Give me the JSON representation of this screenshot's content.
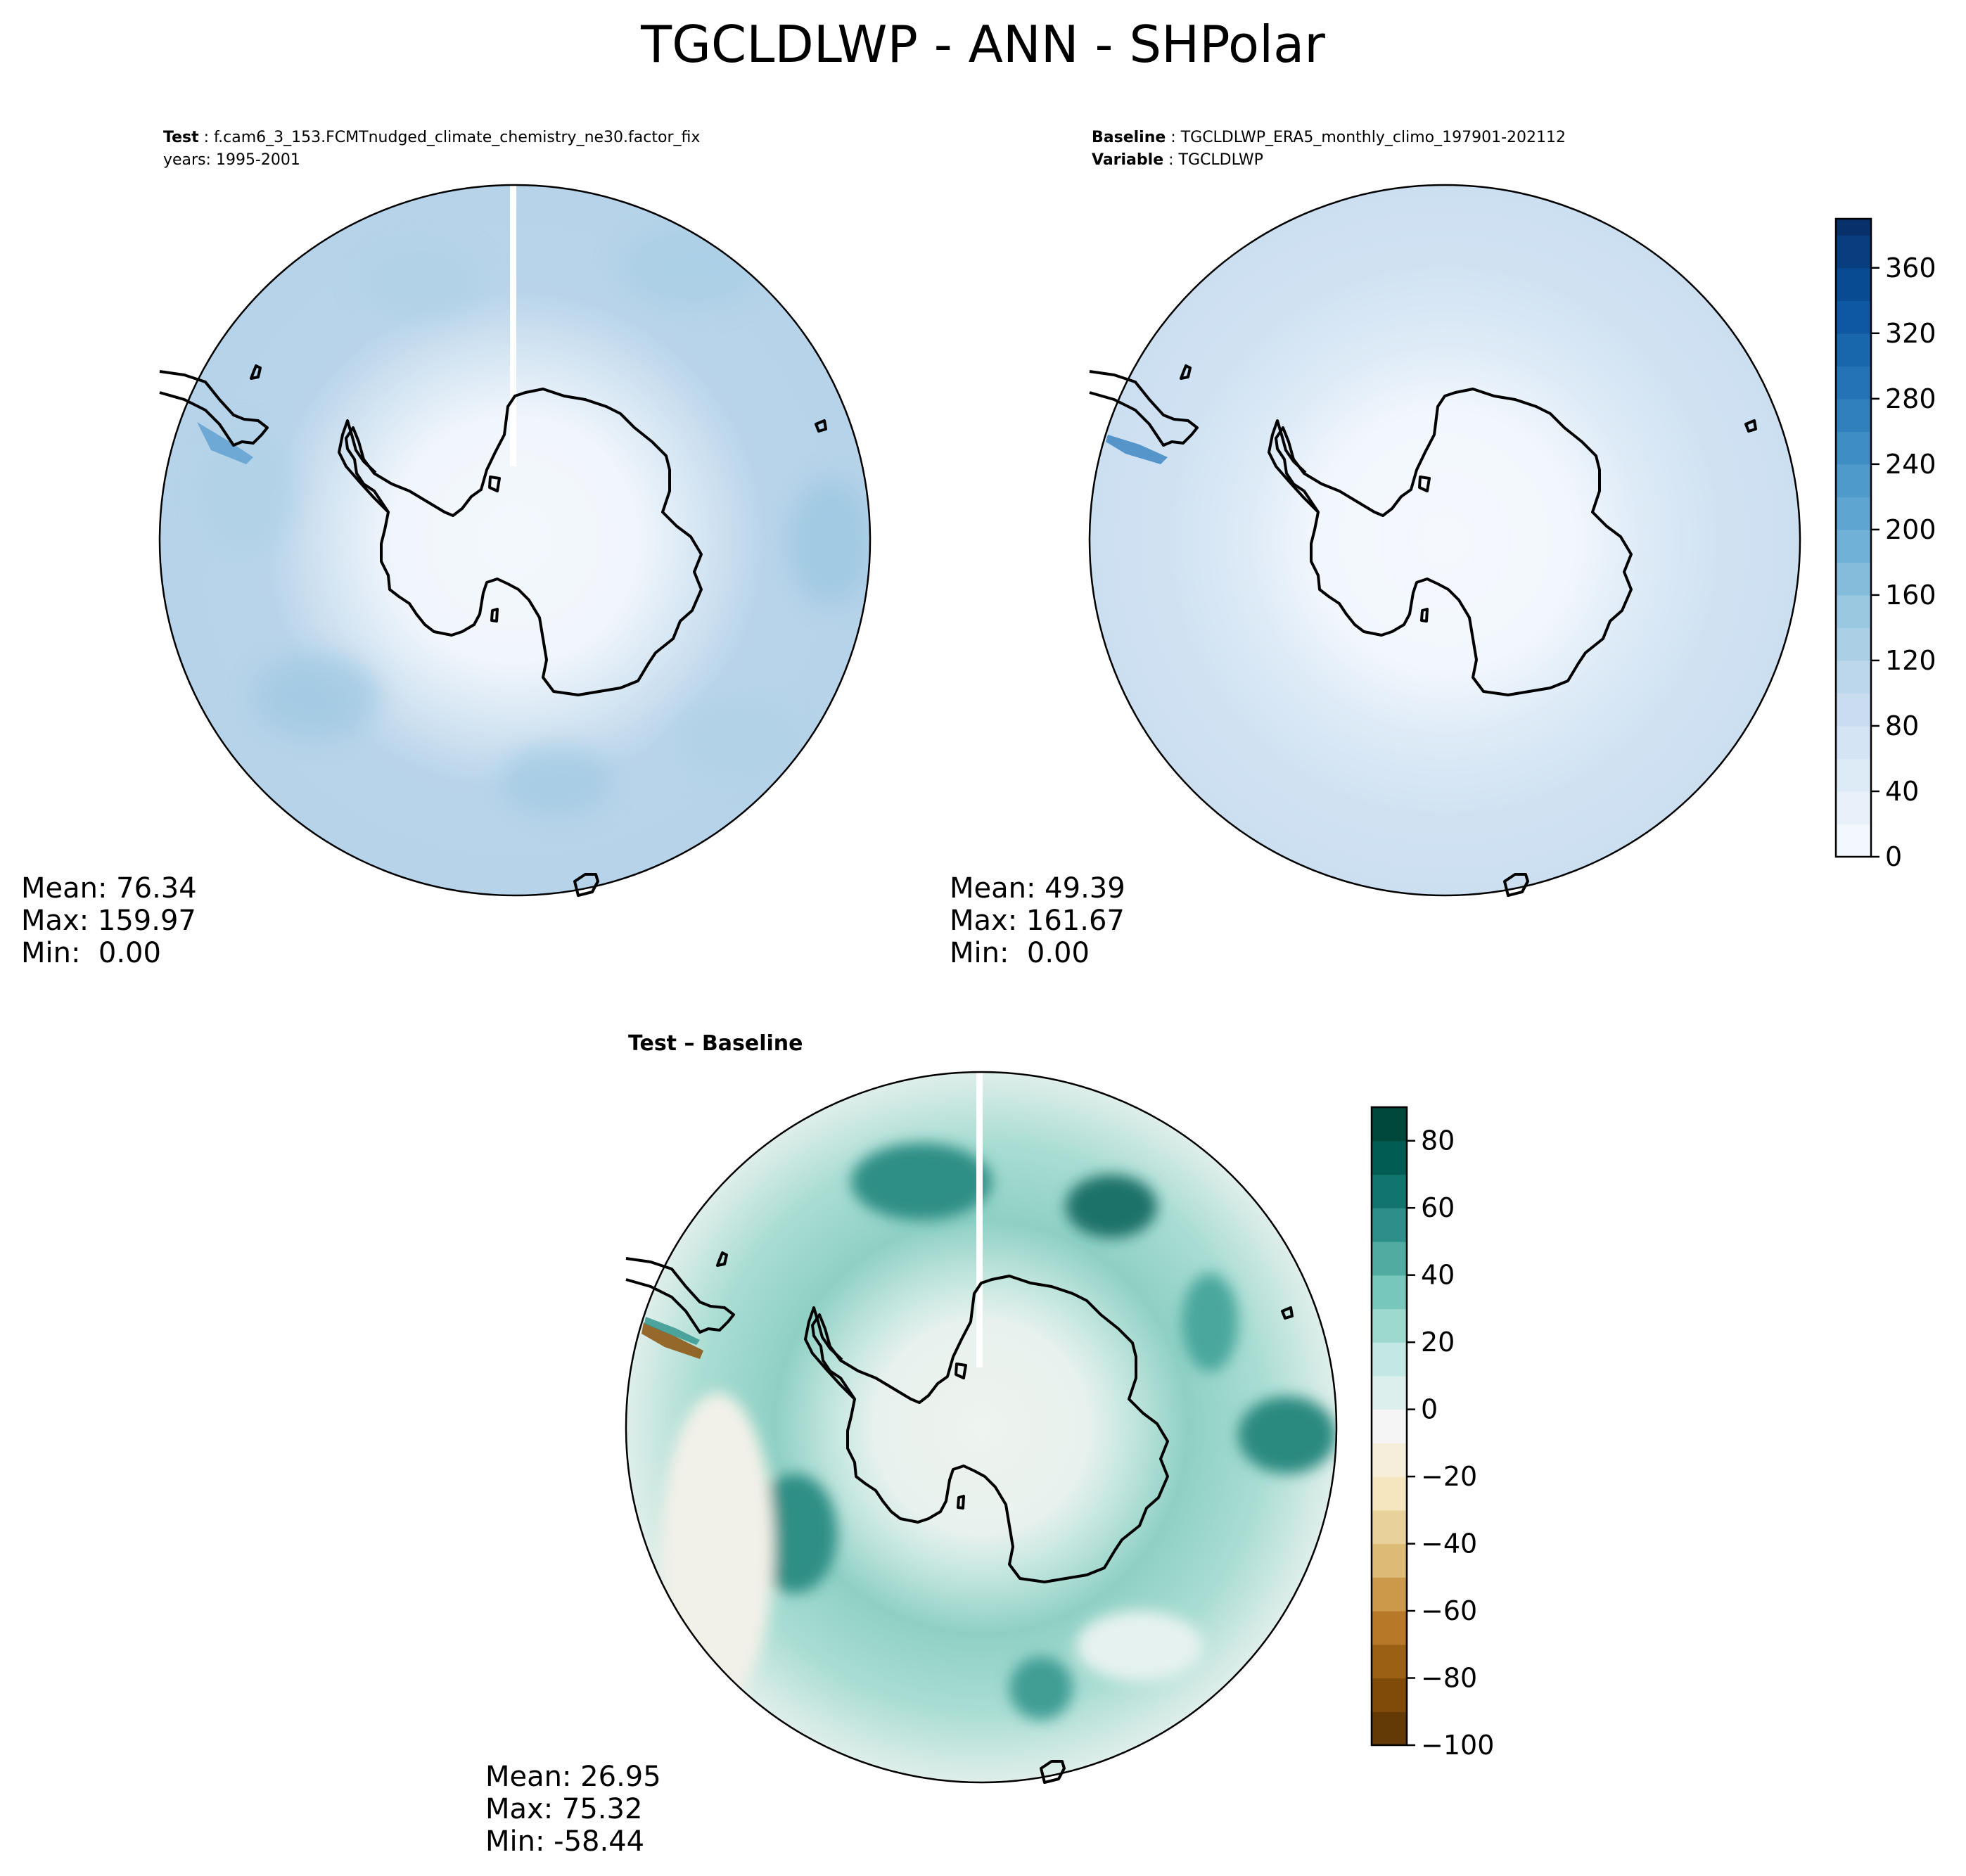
{
  "figure_title": "TGCLDLWP - ANN - SHPolar",
  "panels": {
    "test": {
      "label_key": "Test",
      "label_value": "f.cam6_3_153.FCMTnudged_climate_chemistry_ne30.factor_fix",
      "years": "years: 1995-2001",
      "mean": "Mean: 76.34",
      "max": "Max: 159.97",
      "min": "Min:  0.00"
    },
    "baseline": {
      "label_key": "Baseline",
      "label_value": "TGCLDLWP_ERA5_monthly_climo_197901-202112",
      "variable_key": "Variable",
      "variable_value": "TGCLDLWP",
      "mean": "Mean: 49.39",
      "max": "Max: 161.67",
      "min": "Min:  0.00"
    },
    "difference": {
      "title_a": "Test",
      "title_sep": " – ",
      "title_b": "Baseline",
      "mean": "Mean: 26.95",
      "max": "Max: 75.32",
      "min": "Min: -58.44"
    }
  },
  "chart_data": [
    {
      "type": "heatmap",
      "name": "Test",
      "projection": "south polar stereographic",
      "summary": {
        "mean": 76.34,
        "max": 159.97,
        "min": 0.0
      },
      "colormap": "Blues",
      "colorbar": {
        "ticks": [
          0,
          40,
          80,
          120,
          160,
          200,
          240,
          280,
          320,
          360
        ],
        "range": [
          0,
          390
        ]
      }
    },
    {
      "type": "heatmap",
      "name": "Baseline",
      "projection": "south polar stereographic",
      "summary": {
        "mean": 49.39,
        "max": 161.67,
        "min": 0.0
      },
      "colormap": "Blues",
      "colorbar": {
        "ticks": [
          0,
          40,
          80,
          120,
          160,
          200,
          240,
          280,
          320,
          360
        ],
        "range": [
          0,
          390
        ]
      }
    },
    {
      "type": "heatmap",
      "name": "Test – Baseline",
      "projection": "south polar stereographic",
      "summary": {
        "mean": 26.95,
        "max": 75.32,
        "min": -58.44
      },
      "colormap": "BrBG",
      "colorbar": {
        "ticks": [
          -100,
          -80,
          -60,
          -40,
          -20,
          0,
          20,
          40,
          60,
          80
        ],
        "range": [
          -100,
          90
        ]
      }
    }
  ],
  "colors": {
    "blues": [
      "#f7fbff",
      "#deebf7",
      "#c6dbef",
      "#9ecae1",
      "#6baed6",
      "#4292c6",
      "#2171b5",
      "#08519c",
      "#08306b"
    ],
    "brbg": [
      "#543005",
      "#8c510a",
      "#bf812d",
      "#dfc27d",
      "#f6e8c3",
      "#f5f5f5",
      "#c7eae5",
      "#80cdc1",
      "#35978f",
      "#01665e",
      "#003c30"
    ]
  }
}
